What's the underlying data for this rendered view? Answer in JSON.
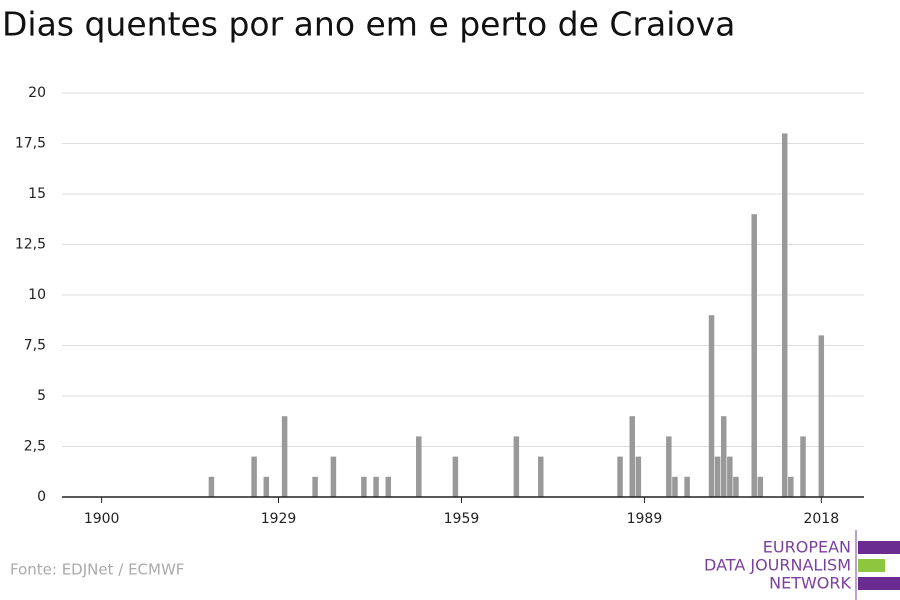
{
  "chart_data": {
    "type": "bar",
    "title": "Dias quentes por ano em e perto de Craiova",
    "x": [
      1918,
      1925,
      1927,
      1930,
      1935,
      1938,
      1943,
      1945,
      1947,
      1952,
      1958,
      1968,
      1972,
      1985,
      1987,
      1988,
      1993,
      1994,
      1996,
      2000,
      2001,
      2002,
      2003,
      2004,
      2007,
      2008,
      2012,
      2013,
      2015,
      2018
    ],
    "values": [
      1,
      2,
      1,
      4,
      1,
      2,
      1,
      1,
      1,
      3,
      2,
      3,
      2,
      2,
      4,
      2,
      3,
      1,
      1,
      9,
      2,
      4,
      2,
      1,
      14,
      1,
      18,
      1,
      3,
      8
    ],
    "color": "#999999",
    "xlim": [
      1893.5,
      2025
    ],
    "xticks": [
      1900,
      1929,
      1959,
      1989,
      2018
    ],
    "ylim": [
      0,
      20
    ],
    "yticks": [
      0,
      {
        "value": 2.5,
        "label": "2,5"
      },
      5,
      {
        "value": 7.5,
        "label": "7,5"
      },
      10,
      {
        "value": 12.5,
        "label": "12,5"
      },
      15,
      {
        "value": 17.5,
        "label": "17,5"
      },
      20
    ],
    "grid": true,
    "source": "Fonte: EDJNet / ECMWF"
  },
  "logo": {
    "lines": [
      "EUROPEAN",
      "DATA JOURNALISM",
      "NETWORK"
    ]
  }
}
